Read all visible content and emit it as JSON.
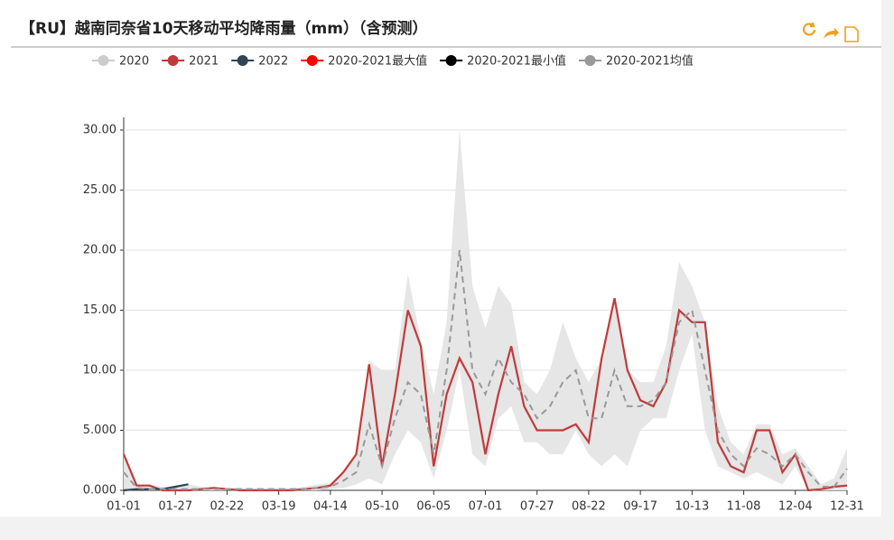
{
  "chart_data": {
    "type": "line",
    "title": "【RU】越南同奈省10天移动平均降雨量（mm）（含预测）",
    "categories": [
      "01-01",
      null,
      null,
      null,
      "01-27",
      null,
      null,
      null,
      "02-22",
      null,
      null,
      null,
      "03-19",
      null,
      null,
      null,
      "04-14",
      null,
      null,
      null,
      "05-10",
      null,
      null,
      null,
      "06-05",
      null,
      null,
      null,
      "07-01",
      null,
      null,
      null,
      "07-27",
      null,
      null,
      null,
      "08-22",
      null,
      null,
      null,
      "09-17",
      null,
      null,
      null,
      "10-13",
      null,
      null,
      null,
      "11-08",
      null,
      null,
      null,
      "12-04",
      null,
      null,
      null,
      "12-31"
    ],
    "ylim": [
      0,
      30
    ],
    "yticks": [
      {
        "value": 0,
        "label": "0.000"
      },
      {
        "value": 5,
        "label": "5.000"
      },
      {
        "value": 10,
        "label": "10.00"
      },
      {
        "value": 15,
        "label": "15.00"
      },
      {
        "value": 20,
        "label": "20.00"
      },
      {
        "value": 25,
        "label": "25.00"
      },
      {
        "value": 30,
        "label": "30.00"
      }
    ],
    "grid": true,
    "band_color": "#e6e6e6",
    "series": [
      {
        "name": "2020",
        "color": "#cccccc",
        "visible": false
      },
      {
        "name": "2021",
        "color": "#c23a3a",
        "values": [
          3,
          0.4,
          0.4,
          0,
          0,
          0,
          0.1,
          0.2,
          0.1,
          0,
          0,
          0,
          0,
          0,
          0.1,
          0.2,
          0.4,
          1.5,
          3,
          10.5,
          2,
          8,
          15,
          12,
          2,
          8,
          11,
          9,
          3,
          8,
          12,
          7,
          5,
          5,
          5,
          5.5,
          4,
          11,
          16,
          10,
          7.5,
          7,
          9,
          15,
          14,
          14,
          4,
          2,
          1.5,
          5,
          5,
          1.5,
          3,
          0,
          0.1,
          0.3,
          0.4
        ]
      },
      {
        "name": "2022",
        "color": "#2f4554",
        "values": [
          0,
          0.1,
          0.1,
          0.1,
          0.3,
          0.5,
          null,
          null,
          null,
          null,
          null,
          null,
          null,
          null,
          null,
          null,
          null,
          null,
          null,
          null,
          null,
          null,
          null,
          null,
          null,
          null,
          null,
          null,
          null,
          null,
          null,
          null,
          null,
          null,
          null,
          null,
          null,
          null,
          null,
          null,
          null,
          null,
          null,
          null,
          null,
          null,
          null,
          null,
          null,
          null,
          null,
          null,
          null,
          null,
          null,
          null,
          null
        ]
      },
      {
        "name": "2020-2021最大值",
        "color": "#ff0000",
        "band": "upper",
        "values": [
          3,
          0.5,
          0.5,
          0.3,
          0.3,
          0.5,
          0.3,
          0.3,
          0.2,
          0.2,
          0.2,
          0.2,
          0.2,
          0.2,
          0.3,
          0.5,
          0.6,
          1.5,
          3,
          10.8,
          10,
          10,
          18,
          12.5,
          8,
          14,
          30,
          17,
          13.5,
          17,
          15.5,
          9,
          8,
          10,
          14,
          11,
          9,
          11,
          16,
          10,
          9,
          9,
          12,
          19,
          17,
          14,
          7,
          4,
          3,
          5.5,
          5.5,
          3,
          3.5,
          2,
          0.5,
          1,
          3.5
        ]
      },
      {
        "name": "2020-2021最小值",
        "color": "#000000",
        "band": "lower",
        "values": [
          0,
          0.1,
          0,
          0,
          0,
          0,
          0,
          0,
          0,
          0,
          0,
          0,
          0,
          0,
          0,
          0,
          0.1,
          0.2,
          0.5,
          1,
          0.5,
          3,
          5,
          4,
          1,
          5,
          10,
          3,
          2,
          6,
          7,
          4,
          4,
          3,
          3,
          5,
          3,
          2,
          3,
          2,
          5,
          6,
          6,
          10,
          13,
          5,
          2,
          1.5,
          1,
          1.5,
          1,
          0.5,
          2,
          0,
          0,
          0,
          0
        ]
      },
      {
        "name": "2020-2021均值",
        "color": "#999999",
        "dash": true,
        "values": [
          1.5,
          0.2,
          0.1,
          0.1,
          0.1,
          0.1,
          0.1,
          0.1,
          0.1,
          0.1,
          0.1,
          0.1,
          0.1,
          0.1,
          0.1,
          0.2,
          0.3,
          0.8,
          1.5,
          5.5,
          2,
          6,
          9,
          8,
          3,
          10,
          20,
          10,
          8,
          11,
          9,
          8,
          6,
          7,
          9,
          10,
          6,
          6,
          10,
          7,
          7,
          7.5,
          9,
          14,
          15,
          10,
          5,
          3,
          2,
          3.5,
          3,
          2,
          3,
          1.5,
          0.3,
          0.3,
          1.8
        ]
      }
    ]
  }
}
